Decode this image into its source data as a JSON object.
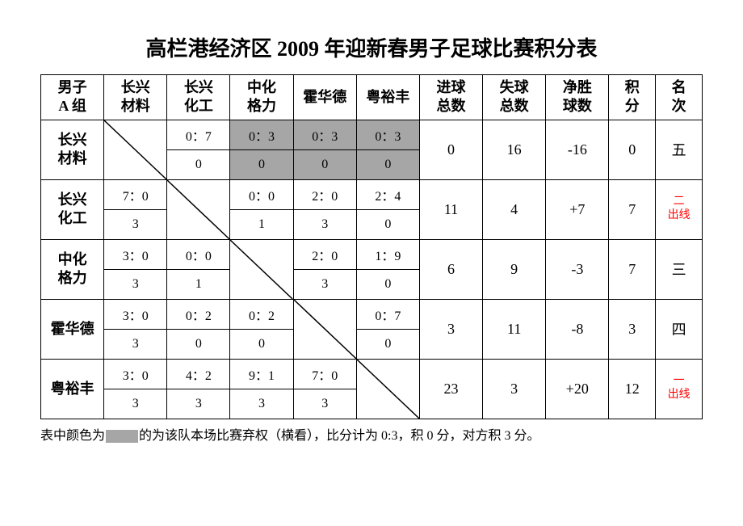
{
  "title": "高栏港经济区 2009 年迎新春男子足球比赛积分表",
  "group_label": "男子\nA 组",
  "teams": [
    "长兴\n材料",
    "长兴\n化工",
    "中化\n格力",
    "霍华德",
    "粤裕丰"
  ],
  "stat_headers": [
    "进球\n总数",
    "失球\n总数",
    "净胜\n球数",
    "积\n分",
    "名\n次"
  ],
  "rows": [
    {
      "name": "长兴\n材料",
      "cells": [
        {
          "diag": true
        },
        {
          "score": "0：7",
          "pts": "0",
          "forfeit": false
        },
        {
          "score": "0：3",
          "pts": "0",
          "forfeit": true
        },
        {
          "score": "0：3",
          "pts": "0",
          "forfeit": true
        },
        {
          "score": "0：3",
          "pts": "0",
          "forfeit": true
        }
      ],
      "gf": "0",
      "ga": "16",
      "gd": "-16",
      "pts": "0",
      "rank": "五",
      "rank_red": false
    },
    {
      "name": "长兴\n化工",
      "cells": [
        {
          "score": "7：0",
          "pts": "3",
          "forfeit": false
        },
        {
          "diag": true
        },
        {
          "score": "0：0",
          "pts": "1",
          "forfeit": false
        },
        {
          "score": "2：0",
          "pts": "3",
          "forfeit": false
        },
        {
          "score": "2：4",
          "pts": "0",
          "forfeit": false
        }
      ],
      "gf": "11",
      "ga": "4",
      "gd": "+7",
      "pts": "7",
      "rank": "二\n出线",
      "rank_red": true
    },
    {
      "name": "中化\n格力",
      "cells": [
        {
          "score": "3：0",
          "pts": "3",
          "forfeit": false
        },
        {
          "score": "0：0",
          "pts": "1",
          "forfeit": false
        },
        {
          "diag": true
        },
        {
          "score": "2：0",
          "pts": "3",
          "forfeit": false
        },
        {
          "score": "1：9",
          "pts": "0",
          "forfeit": false
        }
      ],
      "gf": "6",
      "ga": "9",
      "gd": "-3",
      "pts": "7",
      "rank": "三",
      "rank_red": false
    },
    {
      "name": "霍华德",
      "cells": [
        {
          "score": "3：0",
          "pts": "3",
          "forfeit": false
        },
        {
          "score": "0：2",
          "pts": "0",
          "forfeit": false
        },
        {
          "score": "0：2",
          "pts": "0",
          "forfeit": false
        },
        {
          "diag": true
        },
        {
          "score": "0：7",
          "pts": "0",
          "forfeit": false
        }
      ],
      "gf": "3",
      "ga": "11",
      "gd": "-8",
      "pts": "3",
      "rank": "四",
      "rank_red": false
    },
    {
      "name": "粤裕丰",
      "cells": [
        {
          "score": "3：0",
          "pts": "3",
          "forfeit": false
        },
        {
          "score": "4：2",
          "pts": "3",
          "forfeit": false
        },
        {
          "score": "9：1",
          "pts": "3",
          "forfeit": false
        },
        {
          "score": "7：0",
          "pts": "3",
          "forfeit": false
        },
        {
          "diag": true
        }
      ],
      "gf": "23",
      "ga": "3",
      "gd": "+20",
      "pts": "12",
      "rank": "一\n出线",
      "rank_red": true
    }
  ],
  "footnote_pre": "表中颜色为",
  "footnote_post": "的为该队本场比赛弃权（横看），比分计为 0:3，积 0 分，对方积 3 分。",
  "colors": {
    "forfeit_bg": "#a6a6a6",
    "border": "#000000",
    "highlight_text": "#ff0000",
    "background": "#ffffff"
  }
}
